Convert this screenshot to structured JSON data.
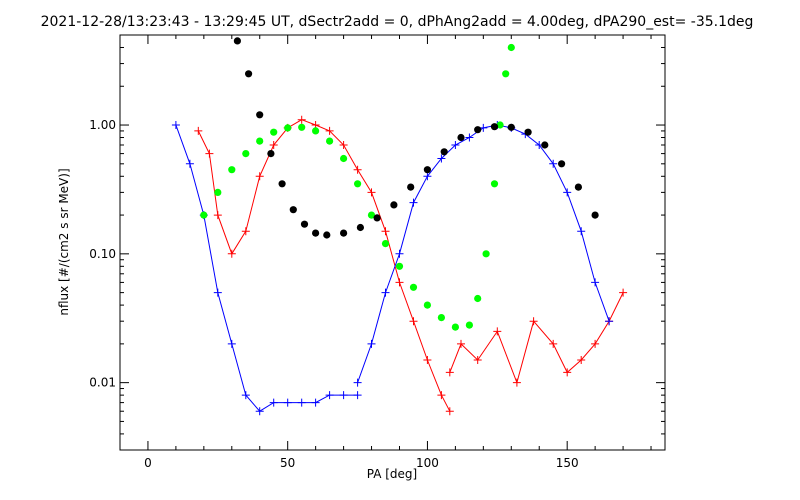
{
  "chart_data": {
    "type": "line",
    "title": "2021-12-28/13:23:43 - 13:29:45 UT, dSectr2add = 0, dPhAng2add = 4.00deg, dPA290_est= -35.1deg",
    "xlabel": "PA [deg]",
    "ylabel": "nflux [#/(cm2 s sr MeV)]",
    "xlim": [
      -10,
      185
    ],
    "ylim": [
      0.003,
      5
    ],
    "yscale": "log",
    "xticks": [
      0,
      50,
      100,
      150
    ],
    "xtick_labels": [
      "0",
      "50",
      "100",
      "150"
    ],
    "yticks": [
      0.01,
      0.1,
      1.0
    ],
    "ytick_labels": [
      "0.01",
      "0.10",
      "1.00"
    ],
    "grid": false,
    "colors": {
      "series1": "#ff0000",
      "series2": "#0000ff",
      "series3": "#00ff00",
      "series4": "#000000"
    },
    "series": [
      {
        "color": "#ff0000",
        "marker": "plus",
        "x": [
          18,
          22,
          25,
          30,
          35,
          40,
          45,
          50,
          55,
          60,
          65,
          70,
          75,
          80,
          85,
          90,
          95,
          100,
          105,
          108
        ],
        "y": [
          0.9,
          0.6,
          0.2,
          0.1,
          0.15,
          0.4,
          0.7,
          0.95,
          1.1,
          1.0,
          0.9,
          0.7,
          0.45,
          0.3,
          0.15,
          0.06,
          0.03,
          0.015,
          0.008,
          0.006
        ]
      },
      {
        "color": "#ff0000",
        "marker": "plus",
        "x": [
          108,
          112,
          118,
          125,
          132,
          138,
          145,
          150,
          155,
          160,
          165,
          170
        ],
        "y": [
          0.012,
          0.02,
          0.015,
          0.025,
          0.01,
          0.03,
          0.02,
          0.012,
          0.015,
          0.02,
          0.03,
          0.05
        ]
      },
      {
        "color": "#0000ff",
        "marker": "plus",
        "x": [
          10,
          15,
          20,
          25,
          30,
          35,
          40,
          45,
          50,
          55,
          60,
          65,
          70,
          75
        ],
        "y": [
          1.0,
          0.5,
          0.2,
          0.05,
          0.02,
          0.008,
          0.006,
          0.007,
          0.007,
          0.007,
          0.007,
          0.008,
          0.008,
          0.008
        ]
      },
      {
        "color": "#0000ff",
        "marker": "plus",
        "x": [
          75,
          80,
          85,
          90,
          95,
          100,
          105,
          110,
          115,
          120,
          125,
          130,
          135,
          140,
          145,
          150,
          155,
          160,
          165
        ],
        "y": [
          0.01,
          0.02,
          0.05,
          0.1,
          0.25,
          0.4,
          0.55,
          0.7,
          0.8,
          0.95,
          1.0,
          0.95,
          0.85,
          0.7,
          0.5,
          0.3,
          0.15,
          0.06,
          0.03
        ]
      },
      {
        "color": "#00ff00",
        "marker": "dot",
        "x": [
          20,
          25,
          30,
          35,
          40,
          45,
          50,
          55,
          60,
          65,
          70,
          75,
          80,
          85,
          90,
          95,
          100,
          105,
          110,
          115,
          118,
          121,
          124,
          126,
          128,
          130
        ],
        "y": [
          0.2,
          0.3,
          0.45,
          0.6,
          0.75,
          0.88,
          0.95,
          0.96,
          0.9,
          0.75,
          0.55,
          0.35,
          0.2,
          0.12,
          0.08,
          0.055,
          0.04,
          0.032,
          0.027,
          0.028,
          0.045,
          0.1,
          0.35,
          1.0,
          2.5,
          4.0
        ]
      },
      {
        "color": "#000000",
        "marker": "dot",
        "x": [
          32,
          36,
          40,
          44,
          48,
          52,
          56,
          60,
          64,
          70,
          76,
          82,
          88,
          94,
          100,
          106,
          112,
          118,
          124,
          130,
          136,
          142,
          148,
          154,
          160
        ],
        "y": [
          4.5,
          2.5,
          1.2,
          0.6,
          0.35,
          0.22,
          0.17,
          0.145,
          0.14,
          0.145,
          0.16,
          0.19,
          0.24,
          0.33,
          0.45,
          0.62,
          0.8,
          0.92,
          0.97,
          0.96,
          0.88,
          0.7,
          0.5,
          0.33,
          0.2
        ]
      }
    ]
  }
}
